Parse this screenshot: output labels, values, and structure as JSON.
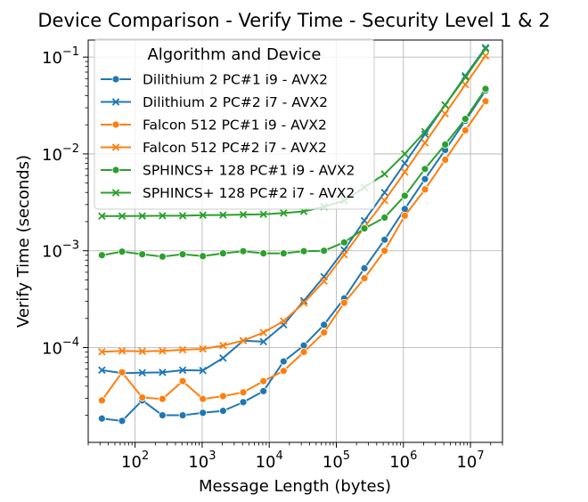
{
  "chart_data": {
    "type": "line",
    "title": "Device Comparison - Verify Time - Security Level 1 & 2",
    "xlabel": "Message Length (bytes)",
    "ylabel": "Verify Time (seconds)",
    "xscale": "log",
    "yscale": "log",
    "xlim": [
      20,
      30000000
    ],
    "ylim": [
      1.05e-05,
      0.15
    ],
    "x_ticks": [
      {
        "value": 100,
        "base": "10",
        "exp": "2"
      },
      {
        "value": 1000,
        "base": "10",
        "exp": "3"
      },
      {
        "value": 10000,
        "base": "10",
        "exp": "4"
      },
      {
        "value": 100000,
        "base": "10",
        "exp": "5"
      },
      {
        "value": 1000000,
        "base": "10",
        "exp": "6"
      },
      {
        "value": 10000000,
        "base": "10",
        "exp": "7"
      }
    ],
    "y_ticks": [
      {
        "value": 0.0001,
        "base": "10",
        "exp": "−4"
      },
      {
        "value": 0.001,
        "base": "10",
        "exp": "−3"
      },
      {
        "value": 0.01,
        "base": "10",
        "exp": "−2"
      },
      {
        "value": 0.1,
        "base": "10",
        "exp": "−1"
      }
    ],
    "grid": true,
    "legend": {
      "title": "Algorithm and Device",
      "position": "top-left"
    },
    "x": [
      32,
      64,
      128,
      256,
      512,
      1024,
      2048,
      4096,
      8192,
      16384,
      32768,
      65536,
      131072,
      262144,
      524288,
      1048576,
      2097152,
      4194304,
      8388608,
      16777216
    ],
    "series": [
      {
        "name": "Dilithium 2 PC#1 i9 - AVX2",
        "color": "#1f77b4",
        "marker": "circle",
        "values": [
          1.85e-05,
          1.75e-05,
          2.85e-05,
          2e-05,
          2e-05,
          2.12e-05,
          2.22e-05,
          2.73e-05,
          3.55e-05,
          7.2e-05,
          0.000105,
          0.000172,
          0.000322,
          0.00066,
          0.0013,
          0.0027,
          0.0055,
          0.011,
          0.022,
          0.045
        ]
      },
      {
        "name": "Dilithium 2 PC#2 i7 - AVX2",
        "color": "#1f77b4",
        "marker": "x",
        "values": [
          5.85e-05,
          5.45e-05,
          5.5e-05,
          5.55e-05,
          5.85e-05,
          5.8e-05,
          7.8e-05,
          0.000118,
          0.000115,
          0.000172,
          0.000305,
          0.00054,
          0.00102,
          0.00205,
          0.004,
          0.008,
          0.016,
          0.032,
          0.064,
          0.125
        ]
      },
      {
        "name": "Falcon 512 PC#1 i9 - AVX2",
        "color": "#ff7f0e",
        "marker": "circle",
        "values": [
          2.85e-05,
          5.55e-05,
          3.05e-05,
          2.95e-05,
          4.5e-05,
          2.95e-05,
          3.15e-05,
          3.45e-05,
          4.5e-05,
          5.75e-05,
          9e-05,
          0.000143,
          0.00029,
          0.00052,
          0.001,
          0.0023,
          0.0043,
          0.0087,
          0.0175,
          0.035
        ]
      },
      {
        "name": "Falcon 512 PC#2 i7 - AVX2",
        "color": "#ff7f0e",
        "marker": "x",
        "values": [
          9.05e-05,
          9.25e-05,
          9.15e-05,
          9.25e-05,
          9.5e-05,
          9.7e-05,
          0.000105,
          0.000118,
          0.000143,
          0.000188,
          0.00029,
          0.000485,
          0.00091,
          0.00175,
          0.0033,
          0.0065,
          0.013,
          0.026,
          0.052,
          0.103
        ]
      },
      {
        "name": "SPHINCS+ 128 PC#1 i9 - AVX2",
        "color": "#2ca02c",
        "marker": "circle",
        "values": [
          0.0009,
          0.00098,
          0.00092,
          0.00087,
          0.00092,
          0.00088,
          0.00094,
          0.00099,
          0.00094,
          0.00094,
          0.00099,
          0.001,
          0.00122,
          0.0017,
          0.0022,
          0.0037,
          0.007,
          0.0125,
          0.023,
          0.047
        ]
      },
      {
        "name": "SPHINCS+ 128 PC#2 i7 - AVX2",
        "color": "#2ca02c",
        "marker": "x",
        "values": [
          0.00228,
          0.00228,
          0.00229,
          0.0023,
          0.0023,
          0.00233,
          0.00234,
          0.00236,
          0.00238,
          0.00245,
          0.00255,
          0.00285,
          0.0033,
          0.0045,
          0.0062,
          0.01,
          0.017,
          0.032,
          0.062,
          0.122
        ]
      }
    ]
  }
}
